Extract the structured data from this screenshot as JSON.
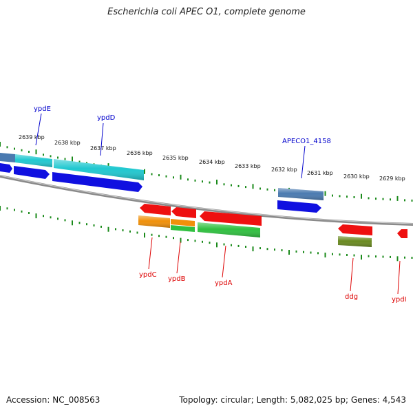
{
  "title": "Escherichia coli APEC O1, complete genome",
  "footer": {
    "accession": "Accession: NC_008563",
    "summary": "Topology: circular; Length: 5,082,025 bp; Genes: 4,543"
  },
  "colors": {
    "backbone": "#8a8a8a",
    "tick": "#1a8a1a",
    "label_forward": "#0000cc",
    "label_reverse": "#dd0000",
    "blue": "#1010e0",
    "cyan": "#20c8d0",
    "steelblue": "#4a7ab0",
    "red": "#ee1010",
    "orange": "#f0900a",
    "green": "#30c040",
    "olive": "#6a8a20"
  },
  "scale_labels": [
    "2639 kbp",
    "2638 kbp",
    "2637 kbp",
    "2636 kbp",
    "2635 kbp",
    "2634 kbp",
    "2633 kbp",
    "2632 kbp",
    "2631 kbp",
    "2630 kbp",
    "2629 kbp"
  ],
  "gene_labels_forward": [
    "ypdE",
    "ypdD",
    "APECO1_4158"
  ],
  "gene_labels_reverse": [
    "ypdC",
    "ypdB",
    "ypdA",
    "ddg",
    "ypdI"
  ]
}
